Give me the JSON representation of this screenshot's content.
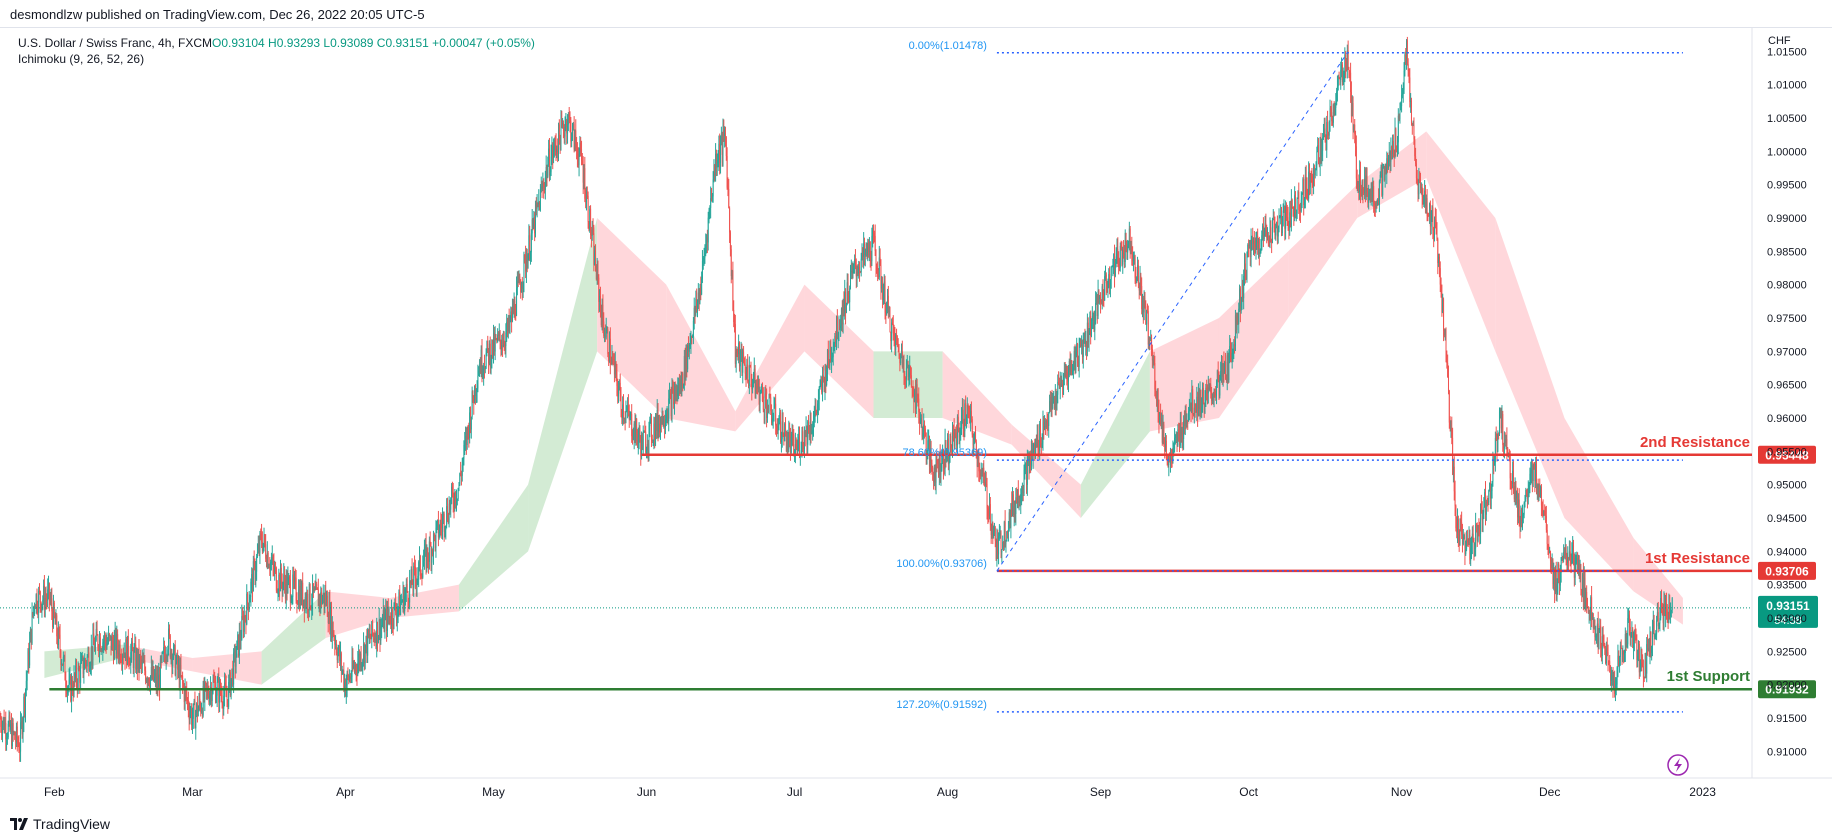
{
  "header": {
    "publisher": "desmondlzw published on TradingView.com, Dec 26, 2022 20:05 UTC-5"
  },
  "legend": {
    "symbol": "U.S. Dollar / Swiss Franc, 4h, FXCM",
    "ohlc": "O0.93104 H0.93293 L0.93089 C0.93151 +0.00047 (+0.05%)",
    "indicator": "Ichimoku (9, 26, 52, 26)"
  },
  "axis": {
    "currency": "CHF"
  },
  "footer": {
    "brand": "TradingView"
  },
  "colors": {
    "up": "#26a69a",
    "down": "#ef5350",
    "resistance": "#e53935",
    "support": "#2e7d32",
    "fib": "#2962ff",
    "fib_text": "#2196f3",
    "cloud_bull": "#c8e6c9",
    "cloud_bear": "#ffcdd2",
    "last_price": "#089981",
    "alert": "#9c27b0"
  },
  "chart_data": {
    "type": "candlestick",
    "symbol": "USDCHF",
    "timeframe": "4h",
    "ylim": [
      0.906,
      1.0185
    ],
    "y_ticks": [
      1.015,
      1.01,
      1.005,
      1.0,
      0.995,
      0.99,
      0.985,
      0.98,
      0.975,
      0.97,
      0.965,
      0.96,
      0.955,
      0.95,
      0.945,
      0.94,
      0.935,
      0.93,
      0.925,
      0.92,
      0.915,
      0.91
    ],
    "y_tick_labels": [
      "1.01500",
      "1.01000",
      "1.00500",
      "1.00000",
      "0.99500",
      "0.99000",
      "0.98500",
      "0.98000",
      "0.97500",
      "0.97000",
      "0.96500",
      "0.96000",
      "0.95500",
      "0.95000",
      "0.94500",
      "0.94000",
      "0.93500",
      "0.93000",
      "0.92500",
      "0.92000",
      "0.91500",
      "0.91000"
    ],
    "x_tick_labels": [
      "Feb",
      "Mar",
      "Apr",
      "May",
      "Jun",
      "Jul",
      "Aug",
      "Sep",
      "Oct",
      "Nov",
      "Dec",
      "2023"
    ],
    "x_tick_dates": [
      "2022-02-01",
      "2022-03-01",
      "2022-04-01",
      "2022-05-01",
      "2022-06-01",
      "2022-07-01",
      "2022-08-01",
      "2022-09-01",
      "2022-10-01",
      "2022-11-01",
      "2022-12-01",
      "2023-01-01"
    ],
    "x_range": [
      "2022-01-21",
      "2023-01-11"
    ],
    "price_path": [
      [
        "2022-01-21",
        0.915
      ],
      [
        "2022-01-25",
        0.911
      ],
      [
        "2022-01-28",
        0.933
      ],
      [
        "2022-01-31",
        0.933
      ],
      [
        "2022-02-04",
        0.919
      ],
      [
        "2022-02-10",
        0.927
      ],
      [
        "2022-02-16",
        0.925
      ],
      [
        "2022-02-22",
        0.92
      ],
      [
        "2022-02-24",
        0.927
      ],
      [
        "2022-03-01",
        0.915
      ],
      [
        "2022-03-05",
        0.92
      ],
      [
        "2022-03-08",
        0.918
      ],
      [
        "2022-03-10",
        0.925
      ],
      [
        "2022-03-15",
        0.942
      ],
      [
        "2022-03-18",
        0.936
      ],
      [
        "2022-03-24",
        0.933
      ],
      [
        "2022-03-28",
        0.933
      ],
      [
        "2022-04-01",
        0.92
      ],
      [
        "2022-04-06",
        0.927
      ],
      [
        "2022-04-12",
        0.932
      ],
      [
        "2022-04-18",
        0.94
      ],
      [
        "2022-04-24",
        0.95
      ],
      [
        "2022-04-28",
        0.968
      ],
      [
        "2022-05-04",
        0.973
      ],
      [
        "2022-05-08",
        0.985
      ],
      [
        "2022-05-12",
        0.998
      ],
      [
        "2022-05-16",
        1.005
      ],
      [
        "2022-05-19",
        0.998
      ],
      [
        "2022-05-23",
        0.975
      ],
      [
        "2022-05-27",
        0.962
      ],
      [
        "2022-05-31",
        0.956
      ],
      [
        "2022-06-04",
        0.96
      ],
      [
        "2022-06-08",
        0.965
      ],
      [
        "2022-06-12",
        0.98
      ],
      [
        "2022-06-15",
        0.999
      ],
      [
        "2022-06-17",
        1.002
      ],
      [
        "2022-06-19",
        0.97
      ],
      [
        "2022-06-23",
        0.965
      ],
      [
        "2022-06-27",
        0.96
      ],
      [
        "2022-07-01",
        0.955
      ],
      [
        "2022-07-05",
        0.96
      ],
      [
        "2022-07-09",
        0.972
      ],
      [
        "2022-07-13",
        0.982
      ],
      [
        "2022-07-17",
        0.986
      ],
      [
        "2022-07-21",
        0.972
      ],
      [
        "2022-07-25",
        0.965
      ],
      [
        "2022-07-29",
        0.952
      ],
      [
        "2022-08-01",
        0.955
      ],
      [
        "2022-08-05",
        0.961
      ],
      [
        "2022-08-09",
        0.948
      ],
      [
        "2022-08-11",
        0.94
      ],
      [
        "2022-08-15",
        0.948
      ],
      [
        "2022-08-19",
        0.956
      ],
      [
        "2022-08-24",
        0.965
      ],
      [
        "2022-08-29",
        0.972
      ],
      [
        "2022-09-03",
        0.982
      ],
      [
        "2022-09-07",
        0.987
      ],
      [
        "2022-09-11",
        0.972
      ],
      [
        "2022-09-13",
        0.96
      ],
      [
        "2022-09-15",
        0.953
      ],
      [
        "2022-09-19",
        0.962
      ],
      [
        "2022-09-23",
        0.963
      ],
      [
        "2022-09-27",
        0.968
      ],
      [
        "2022-10-01",
        0.985
      ],
      [
        "2022-10-05",
        0.988
      ],
      [
        "2022-10-09",
        0.99
      ],
      [
        "2022-10-13",
        0.995
      ],
      [
        "2022-10-17",
        1.003
      ],
      [
        "2022-10-21",
        1.0147
      ],
      [
        "2022-10-23",
        0.996
      ],
      [
        "2022-10-27",
        0.993
      ],
      [
        "2022-10-31",
        1.002
      ],
      [
        "2022-11-02",
        1.0147
      ],
      [
        "2022-11-04",
        0.996
      ],
      [
        "2022-11-08",
        0.988
      ],
      [
        "2022-11-10",
        0.97
      ],
      [
        "2022-11-12",
        0.944
      ],
      [
        "2022-11-15",
        0.94
      ],
      [
        "2022-11-19",
        0.95
      ],
      [
        "2022-11-21",
        0.96
      ],
      [
        "2022-11-25",
        0.945
      ],
      [
        "2022-11-28",
        0.952
      ],
      [
        "2022-11-30",
        0.946
      ],
      [
        "2022-12-02",
        0.935
      ],
      [
        "2022-12-05",
        0.94
      ],
      [
        "2022-12-09",
        0.932
      ],
      [
        "2022-12-12",
        0.925
      ],
      [
        "2022-12-14",
        0.92
      ],
      [
        "2022-12-17",
        0.929
      ],
      [
        "2022-12-20",
        0.922
      ],
      [
        "2022-12-23",
        0.931
      ],
      [
        "2022-12-26",
        0.9315
      ]
    ],
    "ichimoku_cloud": [
      [
        "2022-01-30",
        0.925,
        0.921
      ],
      [
        "2022-02-15",
        0.926,
        0.924
      ],
      [
        "2022-03-01",
        0.924,
        0.922
      ],
      [
        "2022-03-15",
        0.925,
        0.92
      ],
      [
        "2022-03-28",
        0.934,
        0.927
      ],
      [
        "2022-04-10",
        0.933,
        0.93
      ],
      [
        "2022-04-24",
        0.935,
        0.931
      ],
      [
        "2022-05-08",
        0.95,
        0.94
      ],
      [
        "2022-05-22",
        0.99,
        0.97
      ],
      [
        "2022-06-05",
        0.98,
        0.96
      ],
      [
        "2022-06-19",
        0.961,
        0.958
      ],
      [
        "2022-07-03",
        0.98,
        0.97
      ],
      [
        "2022-07-17",
        0.97,
        0.96
      ],
      [
        "2022-07-31",
        0.97,
        0.96
      ],
      [
        "2022-08-14",
        0.959,
        0.956
      ],
      [
        "2022-08-28",
        0.95,
        0.945
      ],
      [
        "2022-09-11",
        0.97,
        0.958
      ],
      [
        "2022-09-25",
        0.975,
        0.96
      ],
      [
        "2022-10-09",
        0.985,
        0.975
      ],
      [
        "2022-10-23",
        0.995,
        0.99
      ],
      [
        "2022-11-06",
        1.003,
        0.996
      ],
      [
        "2022-11-20",
        0.99,
        0.97
      ],
      [
        "2022-12-04",
        0.96,
        0.945
      ],
      [
        "2022-12-18",
        0.942,
        0.934
      ],
      [
        "2022-12-28",
        0.933,
        0.929
      ]
    ],
    "levels": [
      {
        "label": "2nd Resistance",
        "value": 0.95448,
        "value_label": "0.95448",
        "type": "resistance",
        "from": "2022-05-31"
      },
      {
        "label": "1st Resistance",
        "value": 0.93706,
        "value_label": "0.93706",
        "type": "resistance",
        "from": "2022-08-11"
      },
      {
        "label": "1st Support",
        "value": 0.91932,
        "value_label": "0.91932",
        "type": "support",
        "from": "2022-01-31"
      }
    ],
    "fibonacci": {
      "from": "2022-08-11",
      "to": "2022-12-28",
      "levels": [
        {
          "label": "0.00%(1.01478)",
          "value": 1.01478
        },
        {
          "label": "78.60%(0.95369)",
          "value": 0.95369
        },
        {
          "label": "100.00%(0.93706)",
          "value": 0.93706
        },
        {
          "label": "127.20%(0.91592)",
          "value": 0.91592
        }
      ]
    },
    "trendline": {
      "from": [
        "2022-08-11",
        0.93706
      ],
      "to": [
        "2022-10-21",
        1.01478
      ]
    },
    "last_price": {
      "value": 0.93151,
      "label": "0.93151",
      "countdown": "54:38"
    }
  }
}
